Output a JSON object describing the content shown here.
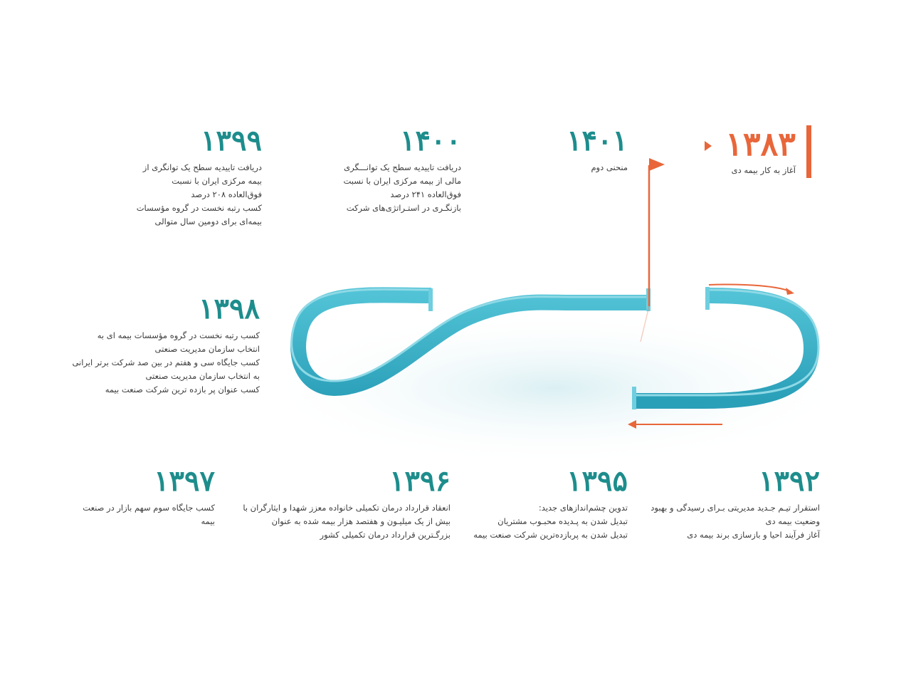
{
  "colors": {
    "accent": "#e8663a",
    "teal": "#1d8d8c",
    "ribbon": "#3ab3c9",
    "text": "#3b3b3b"
  },
  "start": {
    "year": "۱۳۸۳",
    "lines": [
      "آغاز به کار بیمه دی"
    ]
  },
  "milestones": {
    "m1401": {
      "year": "۱۴۰۱",
      "lines": [
        "منحنی دوم"
      ]
    },
    "m1400": {
      "year": "۱۴۰۰",
      "lines": [
        "دریافت تاییدیه سطح یک توانـــگری",
        "مالی از بیمه مرکزی ایران با نسبت",
        "فوق‌العاده ۲۴۱ درصد",
        "بازنگـری در استـراتژی‌های شرکت"
      ]
    },
    "m1399": {
      "year": "۱۳۹۹",
      "lines": [
        "دریافت تاییدیه سطح یک توانگری از",
        "بیمه مرکزی ایران با نسبت",
        "فوق‌العاده ۲۰۸ درصد",
        "کسب رتبه نخست در گروه مؤسسات",
        "بیمه‌ای برای دومین سال متوالی"
      ]
    },
    "m1398": {
      "year": "۱۳۹۸",
      "lines": [
        "کسب رتبه نخست در گروه مؤسسات بیمه ای به",
        "انتخاب سازمان مدیریت صنعتی",
        "کسب جایگاه سی و هفتم در بین صد شرکت برتر ایرانی",
        "به انتخاب سازمان مدیریت صنعتی",
        "کسب عنوان پر بازده ترین شرکت صنعت بیمه"
      ]
    },
    "m1397": {
      "year": "۱۳۹۷",
      "lines": [
        "کسب جایگاه سوم سهم بازار در صنعت",
        "بیمه"
      ]
    },
    "m1396": {
      "year": "۱۳۹۶",
      "lines": [
        "انعقاد قرارداد درمان تکمیلی خانواده معزز شهدا و ایثارگران با",
        "بیش از یک میلیـون و هفتصد هزار بیمه شده به عنوان",
        "بزرگـترین قرارداد درمان تکمیلی کشور"
      ]
    },
    "m1395": {
      "year": "۱۳۹۵",
      "lines": [
        "تدوین چشم‌اندازهای جدید:",
        "تبدیل شدن به پـدیده محبـوب مشتریان",
        "تبدیل شدن به پربازده‌ترین شرکت صنعت بیمه"
      ]
    },
    "m1392": {
      "year": "۱۳۹۲",
      "lines": [
        "استقرار تیـم جـدید مدیریتی بـرای رسیدگی و بهبود",
        "وضعیت بیمه دی",
        "آغاز فرآیند احیا و بازسازی برند بیمه دی"
      ]
    }
  }
}
